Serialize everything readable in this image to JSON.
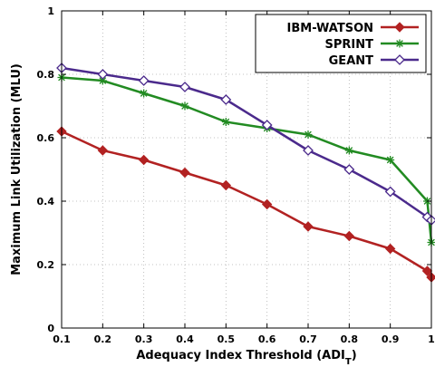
{
  "chart_data": {
    "type": "line",
    "xlabel_main": "Adequacy Index Threshold (ADI",
    "xlabel_sub": "T",
    "xlabel_close": ")",
    "ylabel": "Maximum Link Utilization (MLU)",
    "xlim": [
      0.1,
      1.0
    ],
    "ylim": [
      0,
      1
    ],
    "x_ticks": [
      0.1,
      0.2,
      0.3,
      0.4,
      0.5,
      0.6,
      0.7,
      0.8,
      0.9,
      1.0
    ],
    "x_tick_labels": [
      "0.1",
      "0.2",
      "0.3",
      "0.4",
      "0.5",
      "0.6",
      "0.7",
      "0.8",
      "0.9",
      "1"
    ],
    "y_ticks": [
      0,
      0.2,
      0.4,
      0.6,
      0.8,
      1.0
    ],
    "y_tick_labels": [
      "0",
      "0.2",
      "0.4",
      "0.6",
      "0.8",
      "1"
    ],
    "grid": "dotted",
    "legend_position": "top-right",
    "series": [
      {
        "name": "IBM-WATSON",
        "color": "#b22222",
        "marker": "filled-diamond",
        "x": [
          0.1,
          0.2,
          0.3,
          0.4,
          0.5,
          0.6,
          0.7,
          0.8,
          0.9,
          0.99,
          1.0
        ],
        "y": [
          0.62,
          0.56,
          0.53,
          0.49,
          0.45,
          0.39,
          0.32,
          0.29,
          0.25,
          0.18,
          0.16
        ]
      },
      {
        "name": "SPRINT",
        "color": "#228b22",
        "marker": "star",
        "x": [
          0.1,
          0.2,
          0.3,
          0.4,
          0.5,
          0.6,
          0.7,
          0.8,
          0.9,
          0.99,
          1.0
        ],
        "y": [
          0.79,
          0.78,
          0.74,
          0.7,
          0.65,
          0.63,
          0.61,
          0.56,
          0.53,
          0.4,
          0.27
        ]
      },
      {
        "name": "GEANT",
        "color": "#4b2a8c",
        "marker": "open-diamond",
        "x": [
          0.1,
          0.2,
          0.3,
          0.4,
          0.5,
          0.6,
          0.7,
          0.8,
          0.9,
          0.99,
          1.0
        ],
        "y": [
          0.82,
          0.8,
          0.78,
          0.76,
          0.72,
          0.64,
          0.56,
          0.5,
          0.43,
          0.35,
          0.34
        ]
      }
    ]
  }
}
